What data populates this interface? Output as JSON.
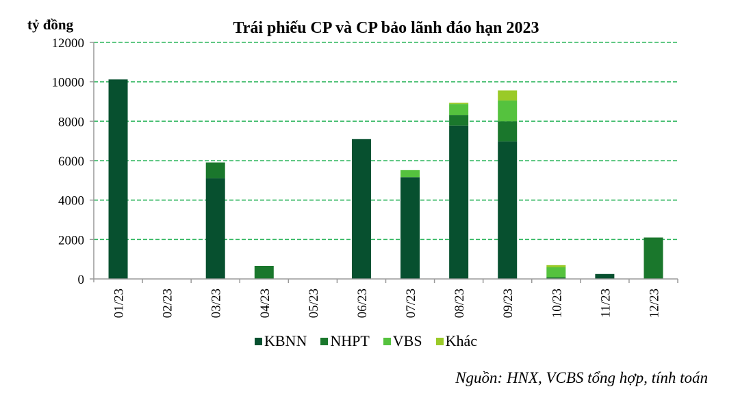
{
  "chart_data": {
    "type": "bar",
    "stacked": true,
    "title": "Trái phiếu CP và CP bảo lãnh đáo hạn 2023",
    "xlabel": "",
    "ylabel": "tỷ đồng",
    "ylim": [
      0,
      12000
    ],
    "yticks": [
      0,
      2000,
      4000,
      6000,
      8000,
      10000,
      12000
    ],
    "grid": true,
    "legend_position": "bottom",
    "categories": [
      "01/23",
      "02/23",
      "03/23",
      "04/23",
      "05/23",
      "06/23",
      "07/23",
      "08/23",
      "09/23",
      "10/23",
      "11/23",
      "12/23"
    ],
    "series": [
      {
        "name": "KBNN",
        "color": "#07502F",
        "values": [
          10120,
          0,
          5110,
          0,
          0,
          7100,
          5160,
          7780,
          6980,
          0,
          250,
          0
        ]
      },
      {
        "name": "NHPT",
        "color": "#1A772C",
        "values": [
          0,
          0,
          800,
          660,
          0,
          0,
          0,
          540,
          1020,
          90,
          0,
          2100
        ]
      },
      {
        "name": "VBS",
        "color": "#55C23E",
        "values": [
          0,
          0,
          0,
          0,
          0,
          0,
          360,
          555,
          1050,
          500,
          0,
          0
        ]
      },
      {
        "name": "Khác",
        "color": "#9ACA28",
        "values": [
          0,
          0,
          0,
          0,
          0,
          0,
          0,
          60,
          510,
          110,
          0,
          0
        ]
      }
    ],
    "source": "Nguồn: HNX, VCBS tổng hợp, tính toán"
  },
  "header": {
    "title": "Trái phiếu CP và CP bảo lãnh đáo hạn 2023",
    "unit": "tỷ đồng"
  },
  "colors": {
    "grid": "#2DB55D",
    "axis": "#999999"
  },
  "legend": [
    {
      "label": "KBNN",
      "color": "#07502F"
    },
    {
      "label": "NHPT",
      "color": "#1A772C"
    },
    {
      "label": "VBS",
      "color": "#55C23E"
    },
    {
      "label": "Khác",
      "color": "#9ACA28"
    }
  ],
  "footer": {
    "source": "Nguồn: HNX, VCBS tổng hợp, tính toán"
  }
}
